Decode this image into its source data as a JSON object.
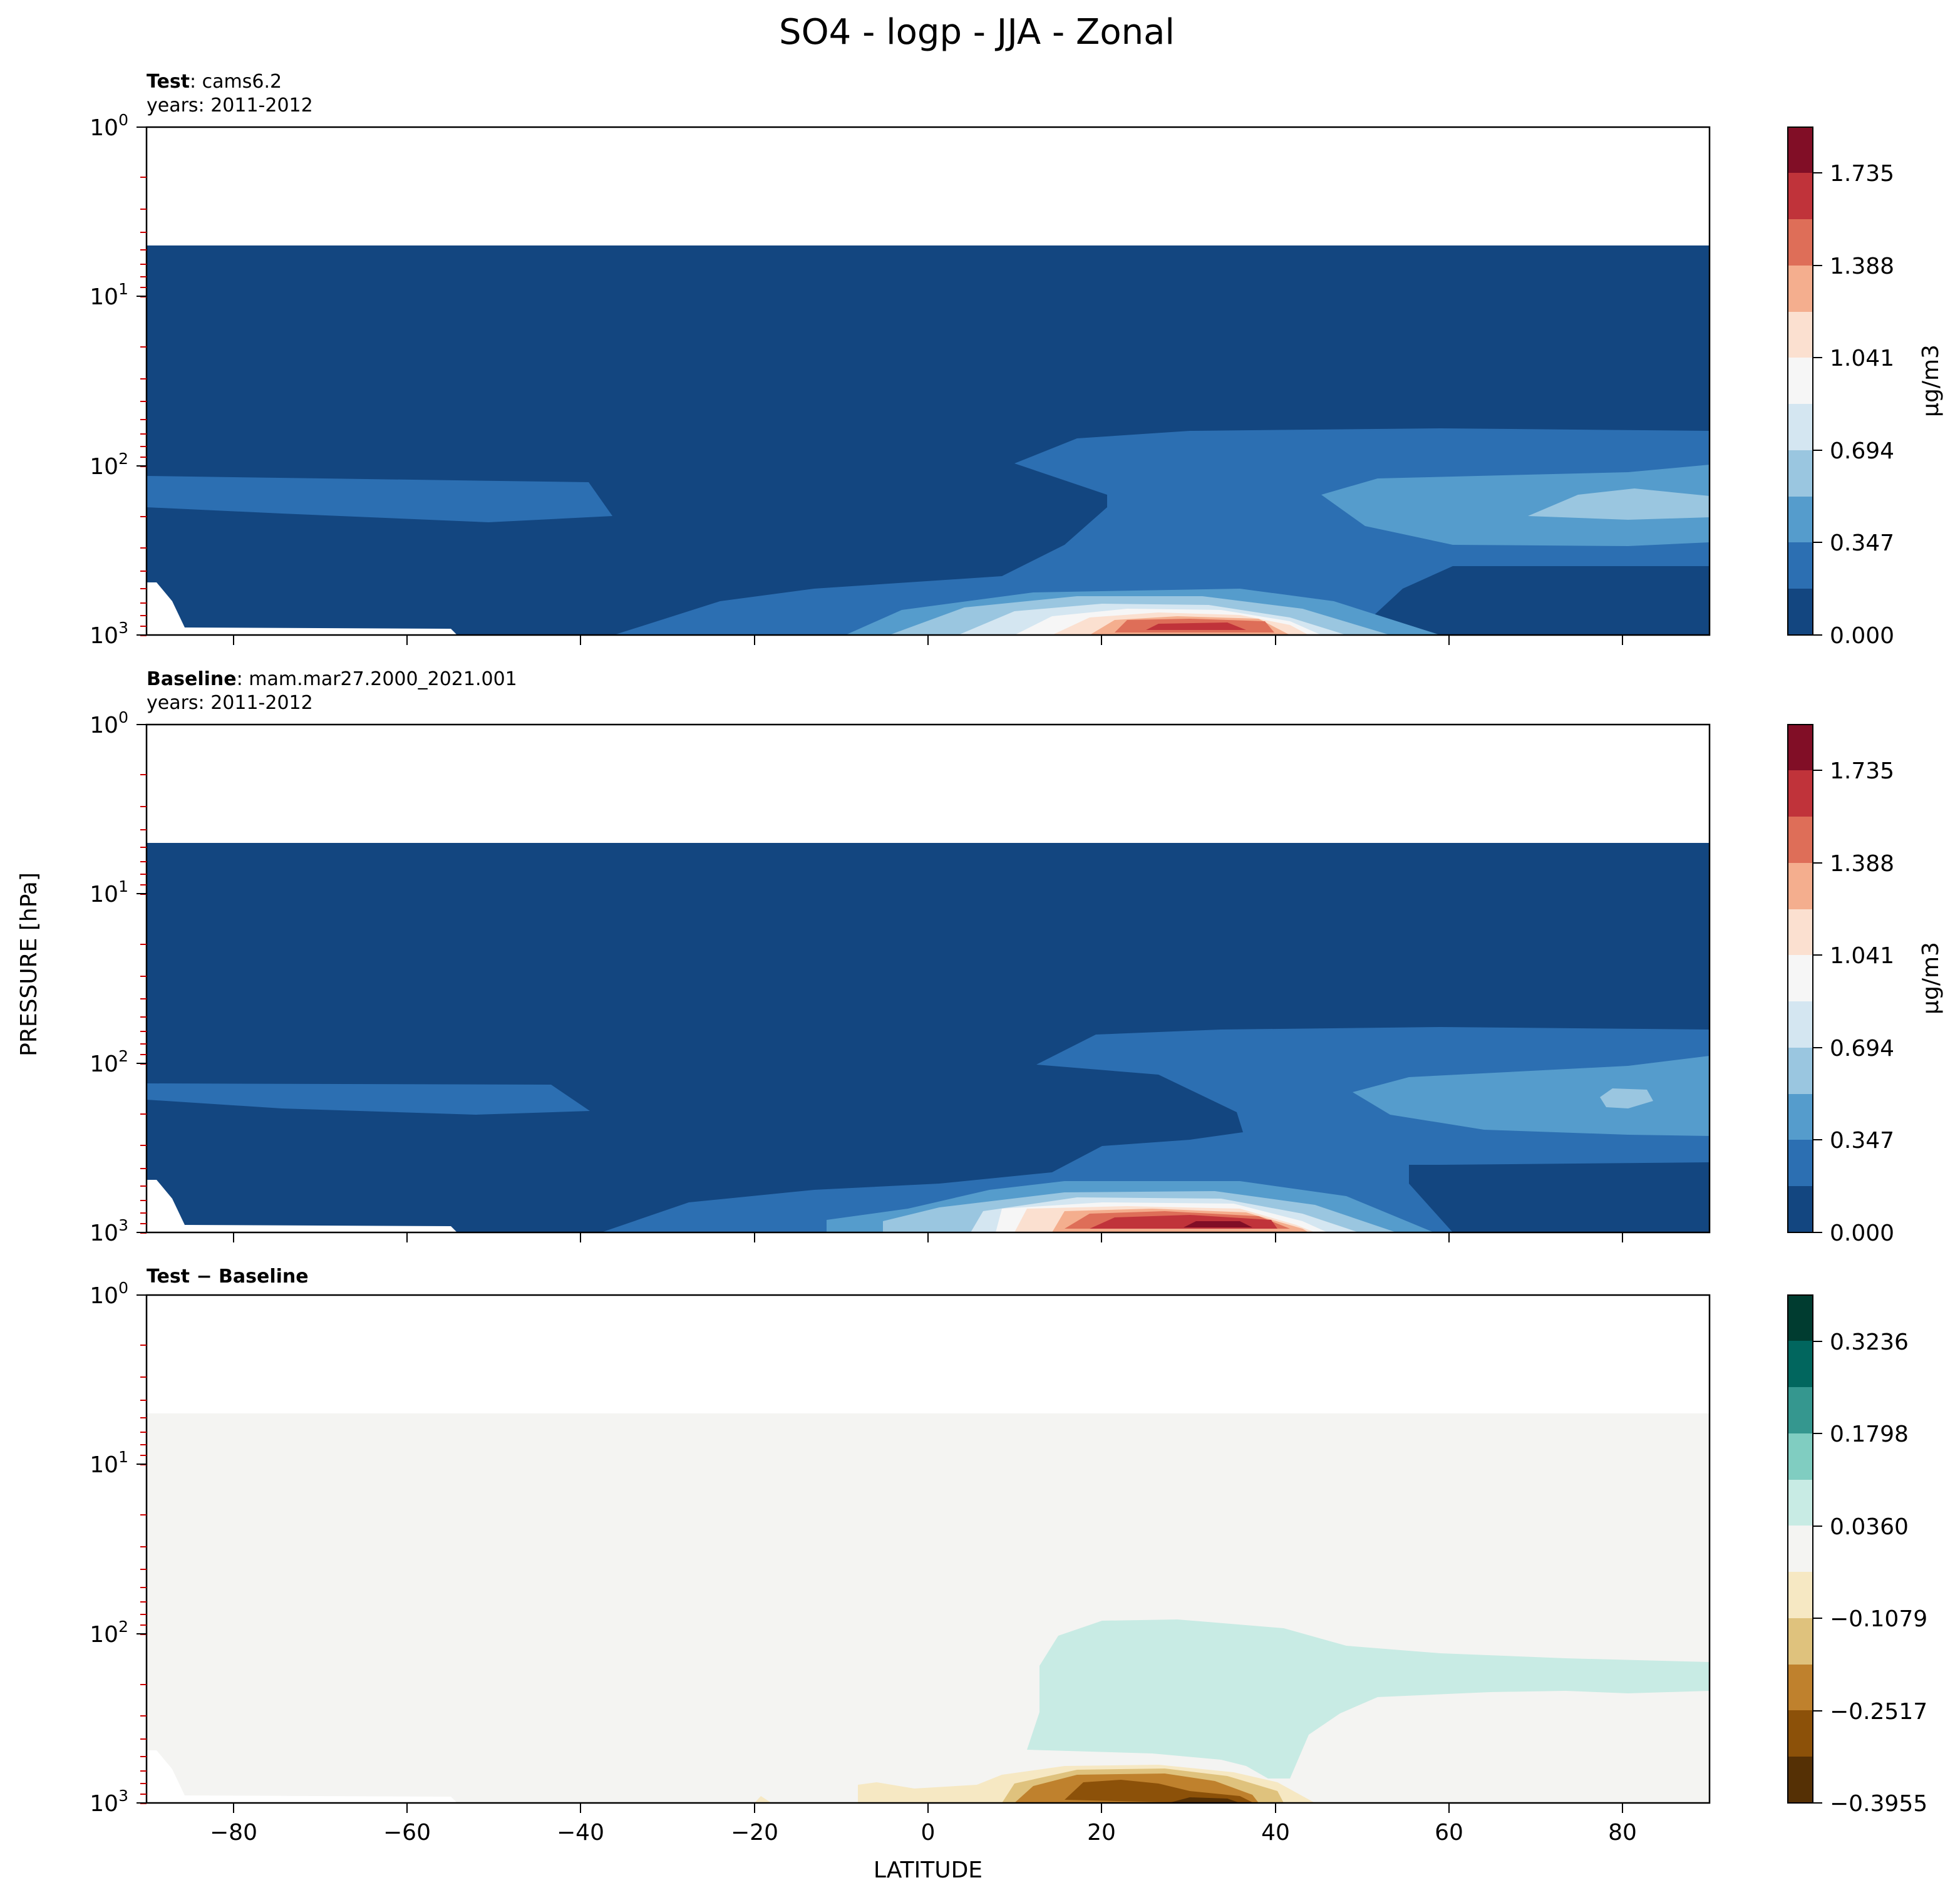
{
  "figure": {
    "title": "SO4 - logp - JJA - Zonal",
    "ylabel": "PRESSURE [hPa]",
    "xlabel": "LATITUDE"
  },
  "chart_data": [
    {
      "type": "heatmap",
      "title_bold": "Test",
      "title_rest": ": cams6.2",
      "subtitle": "years: 2011-2012",
      "x_ticks": [
        -80,
        -60,
        -40,
        -20,
        0,
        20,
        40,
        60,
        80
      ],
      "xlim": [
        -90,
        90
      ],
      "y_scale": "log",
      "ylim": [
        1000,
        1
      ],
      "y_ticks": [
        "10^3",
        "10^2",
        "10^1",
        "10^0"
      ],
      "colorbar": {
        "label": "μg/m3",
        "ticks": [
          "0.000",
          "0.347",
          "0.694",
          "1.041",
          "1.388",
          "1.735"
        ],
        "tick_values": [
          0.0,
          0.347,
          0.694,
          1.041,
          1.388,
          1.735
        ],
        "range": [
          0.0,
          1.908
        ],
        "levels": 11,
        "colors": [
          "#134680",
          "#2c6fb2",
          "#559ccc",
          "#9ac6e0",
          "#d4e6f1",
          "#f6f6f6",
          "#fbe0d0",
          "#f4ae8e",
          "#de6e58",
          "#c0333a",
          "#810e26"
        ]
      }
    },
    {
      "type": "heatmap",
      "title_bold": "Baseline",
      "title_rest": ": mam.mar27.2000_2021.001",
      "subtitle": "years: 2011-2012",
      "x_ticks": [
        -80,
        -60,
        -40,
        -20,
        0,
        20,
        40,
        60,
        80
      ],
      "xlim": [
        -90,
        90
      ],
      "y_scale": "log",
      "ylim": [
        1000,
        1
      ],
      "y_ticks": [
        "10^3",
        "10^2",
        "10^1",
        "10^0"
      ],
      "colorbar": {
        "label": "μg/m3",
        "ticks": [
          "0.000",
          "0.347",
          "0.694",
          "1.041",
          "1.388",
          "1.735"
        ],
        "tick_values": [
          0.0,
          0.347,
          0.694,
          1.041,
          1.388,
          1.735
        ],
        "range": [
          0.0,
          1.908
        ],
        "levels": 11,
        "colors": [
          "#134680",
          "#2c6fb2",
          "#559ccc",
          "#9ac6e0",
          "#d4e6f1",
          "#f6f6f6",
          "#fbe0d0",
          "#f4ae8e",
          "#de6e58",
          "#c0333a",
          "#810e26"
        ]
      }
    },
    {
      "type": "heatmap",
      "title_bold": "Test − Baseline",
      "title_rest": "",
      "subtitle": "",
      "x_ticks": [
        -80,
        -60,
        -40,
        -20,
        0,
        20,
        40,
        60,
        80
      ],
      "xlim": [
        -90,
        90
      ],
      "y_scale": "log",
      "ylim": [
        1000,
        1
      ],
      "y_ticks": [
        "10^3",
        "10^2",
        "10^1",
        "10^0"
      ],
      "colorbar": {
        "label": "",
        "ticks": [
          "−0.3955",
          "−0.2517",
          "−0.1079",
          "0.0360",
          "0.1798",
          "0.3236"
        ],
        "tick_values": [
          -0.3955,
          -0.2517,
          -0.1079,
          0.036,
          0.1798,
          0.3236
        ],
        "range": [
          -0.3955,
          0.3955
        ],
        "levels": 11,
        "colors": [
          "#553005",
          "#8c5109",
          "#bf812d",
          "#dfc27d",
          "#f6e8c3",
          "#f4f4f2",
          "#c8ebe4",
          "#80cdc1",
          "#35978f",
          "#01665e",
          "#003c30"
        ]
      }
    }
  ]
}
